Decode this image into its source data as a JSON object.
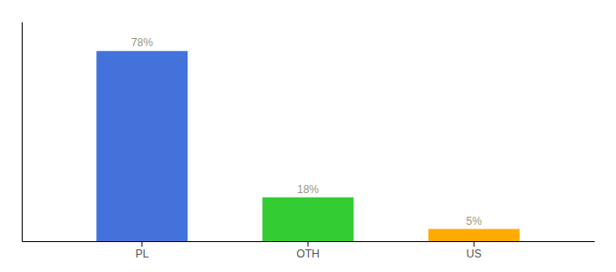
{
  "chart_data": {
    "type": "bar",
    "categories": [
      "PL",
      "OTH",
      "US"
    ],
    "values": [
      78,
      18,
      5
    ],
    "value_labels": [
      "78%",
      "18%",
      "5%"
    ],
    "colors": [
      "#4472db",
      "#33cc33",
      "#ffaa00"
    ],
    "ylim": [
      0,
      90
    ],
    "data_labels": true,
    "tick_labels": "x",
    "grid": false
  }
}
